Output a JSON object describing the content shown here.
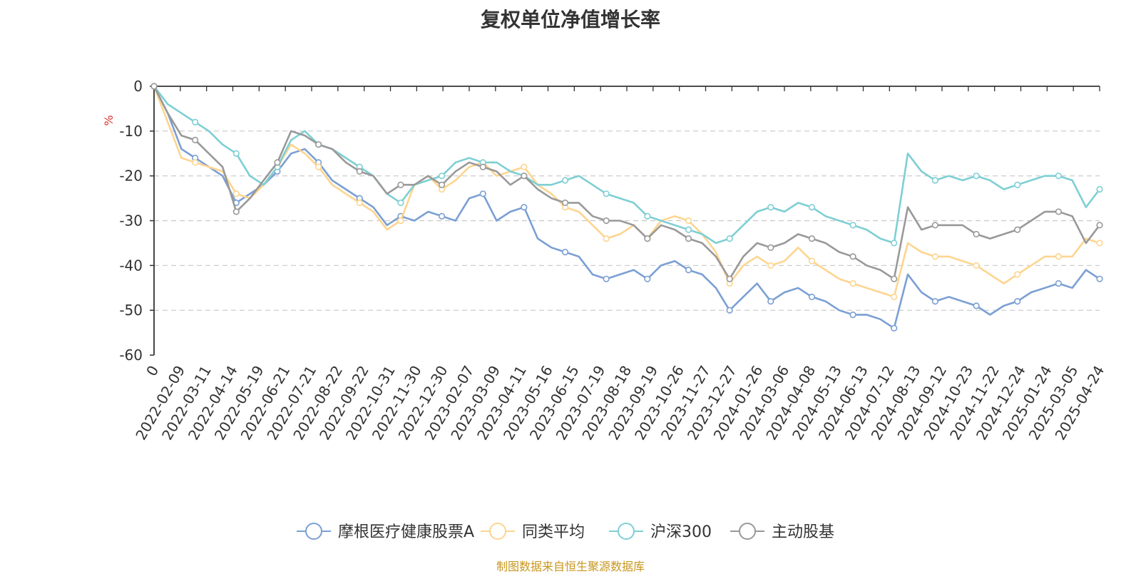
{
  "chart_data": {
    "type": "line",
    "title": "复权单位净值增长率",
    "ylabel": "%",
    "ylim": [
      -60,
      0
    ],
    "yticks": [
      0,
      -10,
      -20,
      -30,
      -40,
      -50,
      -60
    ],
    "grid": true,
    "legend_position": "bottom-center",
    "x_tick_labels": [
      "0",
      "2022-02-09",
      "2022-03-11",
      "2022-04-14",
      "2022-05-19",
      "2022-06-21",
      "2022-07-21",
      "2022-08-22",
      "2022-09-22",
      "2022-10-31",
      "2022-11-30",
      "2022-12-30",
      "2023-02-07",
      "2023-03-09",
      "2023-04-11",
      "2023-05-16",
      "2023-06-15",
      "2023-07-19",
      "2023-08-18",
      "2023-09-19",
      "2023-10-26",
      "2023-11-27",
      "2023-12-27",
      "2024-01-26",
      "2024-03-06",
      "2024-04-08",
      "2024-05-13",
      "2024-06-13",
      "2024-07-12",
      "2024-08-13",
      "2024-09-12",
      "2024-10-23",
      "2024-11-22",
      "2024-12-24",
      "2025-01-24",
      "2025-03-05",
      "2025-04-24"
    ],
    "series": [
      {
        "name": "摩根医疗健康股票A",
        "color": "#7b9fd4",
        "values": [
          0,
          -6,
          -14,
          -16,
          -18,
          -20,
          -26,
          -24,
          -22,
          -19,
          -15,
          -14,
          -17,
          -21,
          -23,
          -25,
          -27,
          -31,
          -29,
          -30,
          -28,
          -29,
          -30,
          -25,
          -24,
          -30,
          -28,
          -27,
          -34,
          -36,
          -37,
          -38,
          -42,
          -43,
          -42,
          -41,
          -43,
          -40,
          -39,
          -41,
          -42,
          -45,
          -50,
          -47,
          -44,
          -48,
          -46,
          -45,
          -47,
          -48,
          -50,
          -51,
          -51,
          -52,
          -54,
          -42,
          -46,
          -48,
          -47,
          -48,
          -49,
          -51,
          -49,
          -48,
          -46,
          -45,
          -44,
          -45,
          -41,
          -43
        ]
      },
      {
        "name": "同类平均",
        "color": "#fdd58f",
        "values": [
          0,
          -8,
          -16,
          -17,
          -18,
          -19,
          -24,
          -25,
          -22,
          -18,
          -13,
          -15,
          -18,
          -22,
          -24,
          -26,
          -28,
          -32,
          -30,
          -22,
          -20,
          -23,
          -21,
          -18,
          -17,
          -20,
          -19,
          -18,
          -22,
          -24,
          -27,
          -28,
          -31,
          -34,
          -33,
          -31,
          -34,
          -30,
          -29,
          -30,
          -33,
          -37,
          -44,
          -40,
          -38,
          -40,
          -39,
          -36,
          -39,
          -41,
          -43,
          -44,
          -45,
          -46,
          -47,
          -35,
          -37,
          -38,
          -38,
          -39,
          -40,
          -42,
          -44,
          -42,
          -40,
          -38,
          -38,
          -38,
          -34,
          -35
        ]
      },
      {
        "name": "沪深300",
        "color": "#7ecfd4",
        "values": [
          0,
          -4,
          -6,
          -8,
          -10,
          -13,
          -15,
          -20,
          -22,
          -18,
          -12,
          -10,
          -13,
          -14,
          -16,
          -18,
          -20,
          -24,
          -26,
          -22,
          -21,
          -20,
          -17,
          -16,
          -17,
          -17,
          -19,
          -20,
          -22,
          -22,
          -21,
          -20,
          -22,
          -24,
          -25,
          -26,
          -29,
          -30,
          -31,
          -32,
          -33,
          -35,
          -34,
          -31,
          -28,
          -27,
          -28,
          -26,
          -27,
          -29,
          -30,
          -31,
          -32,
          -34,
          -35,
          -15,
          -19,
          -21,
          -20,
          -21,
          -20,
          -21,
          -23,
          -22,
          -21,
          -20,
          -20,
          -21,
          -27,
          -23
        ]
      },
      {
        "name": "主动股基",
        "color": "#999999",
        "values": [
          0,
          -6,
          -11,
          -12,
          -15,
          -18,
          -28,
          -25,
          -21,
          -17,
          -10,
          -11,
          -13,
          -14,
          -17,
          -19,
          -20,
          -24,
          -22,
          -22,
          -20,
          -22,
          -19,
          -17,
          -18,
          -19,
          -22,
          -20,
          -23,
          -25,
          -26,
          -26,
          -29,
          -30,
          -30,
          -31,
          -34,
          -31,
          -32,
          -34,
          -35,
          -38,
          -43,
          -38,
          -35,
          -36,
          -35,
          -33,
          -34,
          -35,
          -37,
          -38,
          -40,
          -41,
          -43,
          -27,
          -32,
          -31,
          -31,
          -31,
          -33,
          -34,
          -33,
          -32,
          -30,
          -28,
          -28,
          -29,
          -35,
          -31
        ]
      }
    ]
  },
  "source_text": "制图数据来自恒生聚源数据库"
}
